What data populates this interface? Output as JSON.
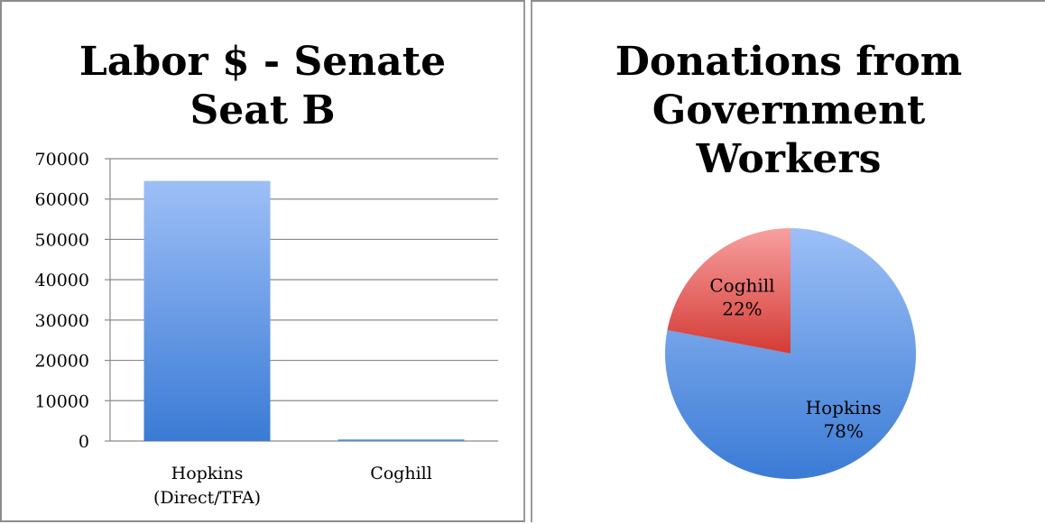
{
  "charts": {
    "bar": {
      "title": "Labor $ - Senate\nSeat B",
      "type": "bar",
      "categories": [
        {
          "line1": "Hopkins",
          "line2": "(Direct/TFA)"
        },
        {
          "line1": "Coghill",
          "line2": ""
        }
      ],
      "values": [
        64500,
        400
      ],
      "ylim": [
        0,
        70000
      ],
      "yticks": [
        "0",
        "10000",
        "20000",
        "30000",
        "40000",
        "50000",
        "60000",
        "70000"
      ],
      "grid": true,
      "bar_color_top": "#9dbff7",
      "bar_color_bottom": "#3a7bd5"
    },
    "pie": {
      "title": "Donations from\nGovernment\nWorkers",
      "type": "pie",
      "slices": [
        {
          "name": "Hopkins",
          "pct_label": "78%",
          "value": 78,
          "color_light": "#9dbff7",
          "color_dark": "#3a7bd5"
        },
        {
          "name": "Coghill",
          "pct_label": "22%",
          "value": 22,
          "color_light": "#f7a0a0",
          "color_dark": "#d43b35"
        }
      ]
    }
  },
  "chart_data": [
    {
      "type": "bar",
      "title": "Labor $ - Senate Seat B",
      "categories": [
        "Hopkins (Direct/TFA)",
        "Coghill"
      ],
      "values": [
        64500,
        400
      ],
      "xlabel": "",
      "ylabel": "",
      "ylim": [
        0,
        70000
      ],
      "grid": true
    },
    {
      "type": "pie",
      "title": "Donations from Government Workers",
      "categories": [
        "Hopkins",
        "Coghill"
      ],
      "values": [
        78,
        22
      ]
    }
  ]
}
